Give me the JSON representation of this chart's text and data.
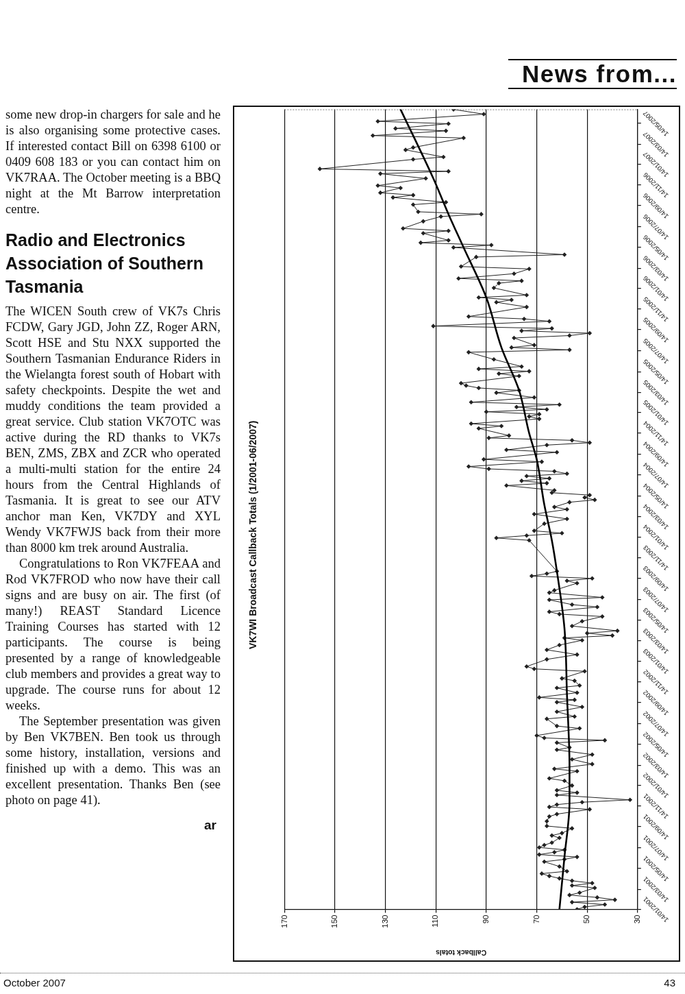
{
  "chart_data": {
    "type": "line",
    "orientation": "horizontal",
    "title": "VK7WI Broadcast Callback Totals (1/2001-06/2007)",
    "xlabel": "Callback totals",
    "xlim": [
      170,
      30
    ],
    "xticks": [
      170,
      150,
      130,
      110,
      90,
      70,
      50,
      30
    ],
    "ylim": [
      "2001-01-14",
      "2007-06-24"
    ],
    "yticks": [
      {
        "value": "2001-01-14",
        "label": "14/01/2001"
      },
      {
        "value": "2001-03-14",
        "label": "14/03/2001"
      },
      {
        "value": "2001-05-14",
        "label": "14/05/2001"
      },
      {
        "value": "2001-07-14",
        "label": "14/07/2001"
      },
      {
        "value": "2001-09-14",
        "label": "14/09/2001"
      },
      {
        "value": "2001-11-14",
        "label": "14/11/2001"
      },
      {
        "value": "2002-01-14",
        "label": "14/01/2002"
      },
      {
        "value": "2002-03-14",
        "label": "14/03/2002"
      },
      {
        "value": "2002-05-14",
        "label": "14/05/2002"
      },
      {
        "value": "2002-07-14",
        "label": "14/07/2002"
      },
      {
        "value": "2002-09-14",
        "label": "14/09/2002"
      },
      {
        "value": "2002-11-14",
        "label": "14/11/2002"
      },
      {
        "value": "2003-01-14",
        "label": "14/01/2003"
      },
      {
        "value": "2003-03-14",
        "label": "14/03/2003"
      },
      {
        "value": "2003-05-14",
        "label": "14/05/2003"
      },
      {
        "value": "2003-07-14",
        "label": "14/07/2003"
      },
      {
        "value": "2003-09-14",
        "label": "14/09/2003"
      },
      {
        "value": "2003-11-14",
        "label": "14/11/2003"
      },
      {
        "value": "2004-01-14",
        "label": "14/01/2004"
      },
      {
        "value": "2004-03-14",
        "label": "14/03/2004"
      },
      {
        "value": "2004-05-14",
        "label": "14/05/2004"
      },
      {
        "value": "2004-07-14",
        "label": "14/07/2004"
      },
      {
        "value": "2004-09-14",
        "label": "14/09/2004"
      },
      {
        "value": "2004-11-14",
        "label": "14/11/2004"
      },
      {
        "value": "2005-01-14",
        "label": "14/01/2005"
      },
      {
        "value": "2005-03-14",
        "label": "14/03/2005"
      },
      {
        "value": "2005-05-14",
        "label": "14/05/2005"
      },
      {
        "value": "2005-07-14",
        "label": "14/07/2005"
      },
      {
        "value": "2005-09-14",
        "label": "14/09/2005"
      },
      {
        "value": "2005-11-14",
        "label": "14/11/2005"
      },
      {
        "value": "2006-01-14",
        "label": "14/01/2006"
      },
      {
        "value": "2006-03-14",
        "label": "14/03/2006"
      },
      {
        "value": "2006-05-14",
        "label": "14/05/2006"
      },
      {
        "value": "2006-07-14",
        "label": "14/07/2006"
      },
      {
        "value": "2006-09-14",
        "label": "14/09/2006"
      },
      {
        "value": "2006-11-14",
        "label": "14/11/2006"
      },
      {
        "value": "2007-01-14",
        "label": "14/01/2007"
      },
      {
        "value": "2007-03-14",
        "label": "14/03/2007"
      },
      {
        "value": "2007-05-14",
        "label": "14/05/2007"
      }
    ],
    "grid": "x",
    "marker": "diamond",
    "series": [
      {
        "color": "#222222",
        "x": [
          "2001-01-14",
          "2001-01-21",
          "2001-01-28",
          "2001-02-04",
          "2001-02-11",
          "2001-02-18",
          "2001-02-25",
          "2001-03-04",
          "2001-03-18",
          "2001-03-25",
          "2001-04-01",
          "2001-04-08",
          "2001-04-15",
          "2001-04-22",
          "2001-04-29",
          "2001-05-06",
          "2001-05-20",
          "2001-06-03",
          "2001-06-10",
          "2001-06-17",
          "2001-06-24",
          "2001-07-01",
          "2001-07-08",
          "2001-07-15",
          "2001-07-22",
          "2001-07-29",
          "2001-08-12",
          "2001-08-19",
          "2001-08-26",
          "2001-09-09",
          "2001-09-16",
          "2001-09-30",
          "2001-10-14",
          "2001-10-21",
          "2001-11-04",
          "2001-11-11",
          "2001-11-18",
          "2001-11-25",
          "2001-12-02",
          "2001-12-16",
          "2001-12-23",
          "2001-12-30",
          "2002-01-13",
          "2002-01-27",
          "2002-02-03",
          "2002-02-24",
          "2002-03-03",
          "2002-03-17",
          "2002-03-31",
          "2002-04-14",
          "2002-04-28",
          "2002-05-05",
          "2002-05-19",
          "2002-05-26",
          "2002-06-02",
          "2002-06-09",
          "2002-06-30",
          "2002-07-07",
          "2002-07-28",
          "2002-08-04",
          "2002-08-18",
          "2002-09-01",
          "2002-09-15",
          "2002-09-22",
          "2002-09-29",
          "2002-10-13",
          "2002-10-27",
          "2002-11-03",
          "2002-11-17",
          "2002-11-24",
          "2002-12-15",
          "2002-12-22",
          "2002-12-29",
          "2003-01-19",
          "2003-02-02",
          "2003-02-16",
          "2003-03-02",
          "2003-03-16",
          "2003-03-23",
          "2003-03-30",
          "2003-04-06",
          "2003-04-13",
          "2003-04-27",
          "2003-05-11",
          "2003-05-25",
          "2003-06-01",
          "2003-06-08",
          "2003-06-22",
          "2003-06-29",
          "2003-07-13",
          "2003-07-20",
          "2003-08-03",
          "2003-08-10",
          "2003-08-31",
          "2003-09-07",
          "2003-09-14",
          "2003-09-21",
          "2003-09-28",
          "2003-10-05",
          "2004-01-04",
          "2004-01-11",
          "2004-01-18",
          "2004-01-25",
          "2004-02-01",
          "2004-02-22",
          "2004-03-07",
          "2004-03-21",
          "2004-04-04",
          "2004-04-11",
          "2004-04-25",
          "2004-05-02",
          "2004-05-09",
          "2004-05-16",
          "2004-05-23",
          "2004-05-30",
          "2004-06-13",
          "2004-06-20",
          "2004-06-27",
          "2004-07-04",
          "2004-07-11",
          "2004-07-18",
          "2004-07-25",
          "2004-08-01",
          "2004-08-08",
          "2004-08-22",
          "2004-08-29",
          "2004-09-19",
          "2004-09-26",
          "2004-10-10",
          "2004-10-17",
          "2004-10-24",
          "2004-10-31",
          "2004-11-07",
          "2004-11-28",
          "2004-12-05",
          "2004-12-12",
          "2004-12-26",
          "2005-01-02",
          "2005-01-09",
          "2005-01-16",
          "2005-01-23",
          "2005-01-30",
          "2005-02-06",
          "2005-02-13",
          "2005-02-27",
          "2005-03-13",
          "2005-03-20",
          "2005-03-27",
          "2005-04-03",
          "2005-04-10",
          "2005-05-01",
          "2005-05-08",
          "2005-05-15",
          "2005-05-22",
          "2005-05-29",
          "2005-06-19",
          "2005-07-10",
          "2005-07-17",
          "2005-07-24",
          "2005-07-31",
          "2005-08-21",
          "2005-08-28",
          "2005-09-04",
          "2005-09-11",
          "2005-09-18",
          "2005-09-25",
          "2005-10-09",
          "2005-10-16",
          "2005-10-23",
          "2005-11-20",
          "2005-12-04",
          "2005-12-11",
          "2005-12-18",
          "2005-12-25",
          "2006-01-15",
          "2006-01-29",
          "2006-02-05",
          "2006-02-12",
          "2006-02-26",
          "2006-03-12",
          "2006-03-19",
          "2006-04-16",
          "2006-04-23",
          "2006-05-14",
          "2006-05-21",
          "2006-05-28",
          "2006-06-04",
          "2006-06-25",
          "2006-07-02",
          "2006-07-09",
          "2006-07-30",
          "2006-08-13",
          "2006-08-20",
          "2006-08-27",
          "2006-09-17",
          "2006-09-24",
          "2006-10-08",
          "2006-10-15",
          "2006-10-22",
          "2006-11-05",
          "2006-11-12",
          "2006-12-03",
          "2006-12-17",
          "2006-12-24",
          "2006-12-31",
          "2007-01-28",
          "2007-02-04",
          "2007-02-25",
          "2007-03-04",
          "2007-04-01",
          "2007-04-08",
          "2007-04-22",
          "2007-04-29",
          "2007-05-13",
          "2007-05-20",
          "2007-06-10",
          "2007-06-24"
        ],
        "values": [
          54,
          51,
          43,
          56,
          39,
          46,
          57,
          53,
          47,
          56,
          48,
          56,
          61,
          65,
          68,
          58,
          61,
          67,
          59,
          54,
          69,
          63,
          59,
          69,
          67,
          64,
          61,
          64,
          60,
          56,
          66,
          66,
          65,
          62,
          49,
          65,
          62,
          52,
          33,
          62,
          54,
          62,
          56,
          59,
          65,
          54,
          63,
          48,
          56,
          48,
          62,
          57,
          62,
          43,
          67,
          70,
          53,
          62,
          66,
          55,
          62,
          52,
          62,
          55,
          69,
          54,
          62,
          53,
          55,
          60,
          51,
          71,
          74,
          66,
          54,
          66,
          61,
          52,
          59,
          40,
          50,
          38,
          56,
          52,
          44,
          61,
          65,
          46,
          56,
          65,
          44,
          65,
          63,
          54,
          58,
          48,
          72,
          66,
          62,
          73,
          86,
          74,
          60,
          71,
          67,
          58,
          71,
          58,
          63,
          57,
          47,
          51,
          49,
          64,
          63,
          82,
          66,
          76,
          65,
          74,
          58,
          63,
          89,
          97,
          68,
          91,
          62,
          82,
          66,
          49,
          56,
          89,
          81,
          93,
          84,
          96,
          69,
          73,
          69,
          90,
          66,
          78,
          61,
          96,
          71,
          86,
          77,
          93,
          98,
          100,
          77,
          85,
          73,
          93,
          76,
          87,
          97,
          57,
          80,
          71,
          79,
          57,
          49,
          76,
          64,
          111,
          65,
          75,
          97,
          74,
          86,
          80,
          93,
          74,
          87,
          85,
          76,
          101,
          79,
          73,
          100,
          94,
          59,
          103,
          88,
          116,
          105,
          115,
          105,
          123,
          115,
          108,
          92,
          117,
          119,
          106,
          127,
          119,
          132,
          124,
          133,
          114,
          132,
          105,
          156,
          119,
          107,
          122,
          119,
          99,
          135,
          106,
          126,
          105,
          133,
          91,
          103
        ]
      },
      {
        "color": "#000000",
        "marker": "none",
        "x": [
          "2001-01-14",
          "2001-06-17",
          "2001-11-25",
          "2002-03-10",
          "2002-10-06",
          "2003-04-20",
          "2003-10-05",
          "2004-01-04",
          "2004-04-18",
          "2004-08-29",
          "2004-11-14",
          "2005-03-20",
          "2005-07-24",
          "2005-12-18",
          "2006-05-14",
          "2006-08-20",
          "2006-12-03",
          "2007-06-24"
        ],
        "values": [
          61,
          59,
          57,
          57,
          58,
          59,
          62,
          64,
          67,
          70,
          73,
          77,
          84,
          90,
          99,
          105,
          111,
          124
        ]
      }
    ],
    "annotations": [
      "News from...",
      "some new drop-in chargers for sale and he is also organising some protective cases. If interested contact Bill on 6398 6100 or 0409 608 183 or you can contact him on VK7RAA. The October meeting is a BBQ night at the Mt Barrow interpretation centre.",
      "Radio and Electronics Association of Southern Tasmania",
      "The WICEN South crew of VK7s Chris FCDW, Gary JGD, John ZZ, Roger ARN, Scott HSE and Stu NXX supported the Southern Tasmanian Endurance Riders in the Wielangta forest south of Hobart with safety checkpoints. Despite the wet and muddy conditions the team provided a great service. Club station VK7OTC was active during the RD thanks to VK7s BEN, ZMS, ZBX and ZCR who operated a multi-multi station for the entire 24 hours from the Central Highlands of Tasmania. It is great to see our ATV anchor man Ken, VK7DY and XYL Wendy VK7FWJS back from their more than 8000 km trek around Australia.",
      "Congratulations to Ron VK7FEAA and Rod VK7FROD who now have their call signs and are busy on air. The first (of many!) REAST Standard Licence Training Courses has started with 12 participants. The course is being presented by a range of knowledgeable club members and provides a great way to upgrade. The course runs for about 12 weeks.",
      "The September presentation was given by Ben VK7BEN. Ben took us through some history, installation, versions and finished up with a demo. This was an excellent presentation. Thanks Ben (see photo on page 41).",
      "ar",
      "October 2007",
      "43"
    ]
  }
}
